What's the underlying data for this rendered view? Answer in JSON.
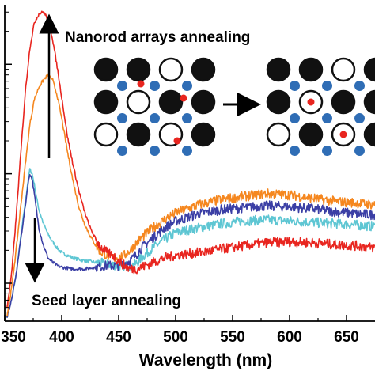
{
  "chart_data": {
    "type": "line",
    "xlabel": "Wavelength (nm)",
    "ylabel": "",
    "xlim": [
      350,
      675
    ],
    "x_ticks": [
      350,
      400,
      450,
      500,
      550,
      600,
      650
    ],
    "x_tick_labels": [
      "350",
      "400",
      "450",
      "500",
      "550",
      "600",
      "650"
    ],
    "y_scale": "log",
    "ylim": [
      0.0045,
      3.5
    ],
    "grid": false,
    "legend": "none",
    "annotations": [
      {
        "text": "Nanorod arrays annealing",
        "arrow": "up"
      },
      {
        "text": "Seed layer annealing",
        "arrow": "down"
      }
    ],
    "series": [
      {
        "color": "#e8251f",
        "x": [
          352,
          356,
          360,
          364,
          368,
          372,
          376,
          380,
          384,
          388,
          392,
          396,
          400,
          405,
          410,
          415,
          420,
          425,
          430,
          435,
          440,
          445,
          450,
          455,
          460,
          465,
          470,
          480,
          490,
          500,
          520,
          540,
          560,
          580,
          600,
          620,
          640,
          660,
          675
        ],
        "y": [
          0.006,
          0.012,
          0.04,
          0.15,
          0.55,
          1.4,
          2.4,
          2.9,
          3.0,
          2.6,
          1.7,
          0.95,
          0.5,
          0.22,
          0.12,
          0.07,
          0.045,
          0.032,
          0.025,
          0.021,
          0.019,
          0.018,
          0.016,
          0.0145,
          0.0135,
          0.0135,
          0.014,
          0.0155,
          0.017,
          0.018,
          0.019,
          0.0205,
          0.022,
          0.0235,
          0.024,
          0.0235,
          0.0225,
          0.022,
          0.021
        ]
      },
      {
        "color": "#f5871f",
        "x": [
          352,
          356,
          360,
          364,
          368,
          372,
          376,
          380,
          384,
          388,
          392,
          396,
          400,
          405,
          410,
          415,
          420,
          425,
          430,
          435,
          440,
          445,
          450,
          455,
          460,
          465,
          470,
          480,
          490,
          500,
          520,
          540,
          560,
          580,
          600,
          620,
          640,
          660,
          675
        ],
        "y": [
          0.005,
          0.009,
          0.02,
          0.05,
          0.12,
          0.28,
          0.48,
          0.62,
          0.72,
          0.8,
          0.72,
          0.52,
          0.32,
          0.16,
          0.085,
          0.05,
          0.035,
          0.027,
          0.022,
          0.019,
          0.018,
          0.017,
          0.017,
          0.018,
          0.02,
          0.023,
          0.026,
          0.032,
          0.038,
          0.044,
          0.052,
          0.058,
          0.062,
          0.066,
          0.064,
          0.06,
          0.056,
          0.054,
          0.052
        ]
      },
      {
        "color": "#3b3fa5",
        "x": [
          352,
          356,
          360,
          364,
          368,
          370,
          372,
          374,
          376,
          378,
          380,
          384,
          388,
          392,
          396,
          400,
          410,
          420,
          430,
          440,
          450,
          460,
          465,
          470,
          480,
          490,
          500,
          520,
          540,
          560,
          580,
          600,
          620,
          640,
          660,
          675
        ],
        "y": [
          0.005,
          0.007,
          0.012,
          0.025,
          0.05,
          0.075,
          0.1,
          0.09,
          0.065,
          0.045,
          0.032,
          0.022,
          0.017,
          0.0155,
          0.0145,
          0.014,
          0.0135,
          0.0135,
          0.014,
          0.0145,
          0.0145,
          0.016,
          0.018,
          0.021,
          0.026,
          0.032,
          0.037,
          0.043,
          0.047,
          0.049,
          0.051,
          0.05,
          0.048,
          0.045,
          0.043,
          0.042
        ]
      },
      {
        "color": "#5ec6d3",
        "x": [
          352,
          356,
          360,
          364,
          368,
          370,
          372,
          374,
          376,
          378,
          380,
          384,
          388,
          392,
          396,
          400,
          410,
          420,
          430,
          440,
          450,
          460,
          465,
          470,
          480,
          490,
          500,
          520,
          540,
          560,
          580,
          600,
          620,
          640,
          660,
          675
        ],
        "y": [
          0.005,
          0.007,
          0.012,
          0.026,
          0.055,
          0.08,
          0.11,
          0.1,
          0.08,
          0.06,
          0.047,
          0.035,
          0.028,
          0.024,
          0.021,
          0.019,
          0.017,
          0.016,
          0.0155,
          0.015,
          0.0145,
          0.0145,
          0.015,
          0.017,
          0.021,
          0.025,
          0.029,
          0.032,
          0.035,
          0.037,
          0.038,
          0.037,
          0.036,
          0.035,
          0.034,
          0.033
        ]
      }
    ]
  },
  "inset": {
    "left_grid": [
      [
        "black",
        "black",
        "white",
        "black"
      ],
      [
        "black",
        "white",
        "black",
        "black"
      ],
      [
        "white",
        "black",
        "white",
        "black"
      ]
    ],
    "right_grid": [
      [
        "black",
        "black",
        "white",
        "black"
      ],
      [
        "black",
        "white-red",
        "black",
        "black"
      ],
      [
        "white",
        "black",
        "white-red",
        "black"
      ]
    ],
    "colors": {
      "atom_black": "#111111",
      "atom_blue": "#2f6db5",
      "atom_red": "#e8251f"
    }
  }
}
